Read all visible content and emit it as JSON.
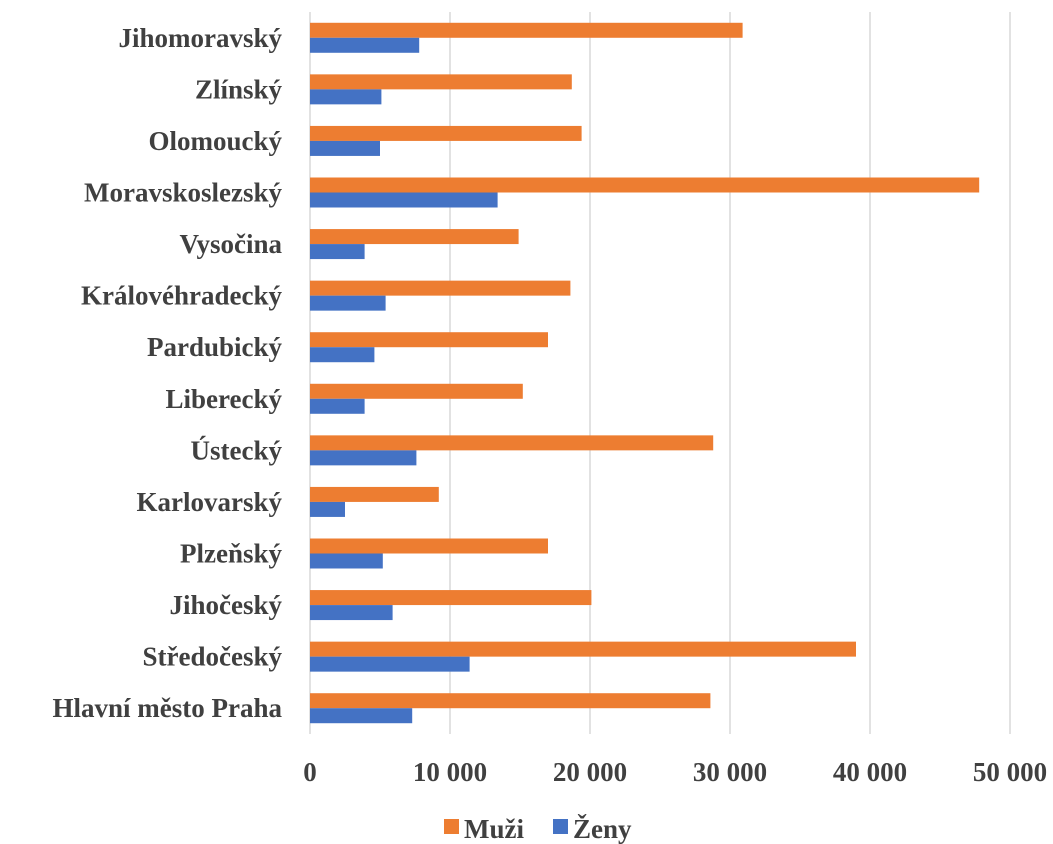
{
  "chart_data": {
    "type": "bar",
    "orientation": "horizontal",
    "categories": [
      "Hlavní město Praha",
      "Středočeský",
      "Jihočeský",
      "Plzeňský",
      "Karlovarský",
      "Ústecký",
      "Liberecký",
      "Pardubický",
      "Královéhradecký",
      "Vysočina",
      "Moravskoslezský",
      "Olomoucký",
      "Zlínský",
      "Jihomoravský"
    ],
    "series": [
      {
        "name": "Muži",
        "color": "#ED7D31",
        "values": [
          28600,
          39000,
          20100,
          17000,
          9200,
          28800,
          15200,
          17000,
          18600,
          14900,
          47800,
          19400,
          18700,
          30900
        ]
      },
      {
        "name": "Ženy",
        "color": "#4472C4",
        "values": [
          7300,
          11400,
          5900,
          5200,
          2500,
          7600,
          3900,
          4600,
          5400,
          3900,
          13400,
          5000,
          5100,
          7800
        ]
      }
    ],
    "xlim": [
      0,
      50000
    ],
    "xticks": [
      0,
      10000,
      20000,
      30000,
      40000,
      50000
    ],
    "xtick_labels": [
      "0",
      "10 000",
      "20 000",
      "30 000",
      "40 000",
      "50 000"
    ],
    "grid": "vertical",
    "legend_position": "bottom"
  }
}
